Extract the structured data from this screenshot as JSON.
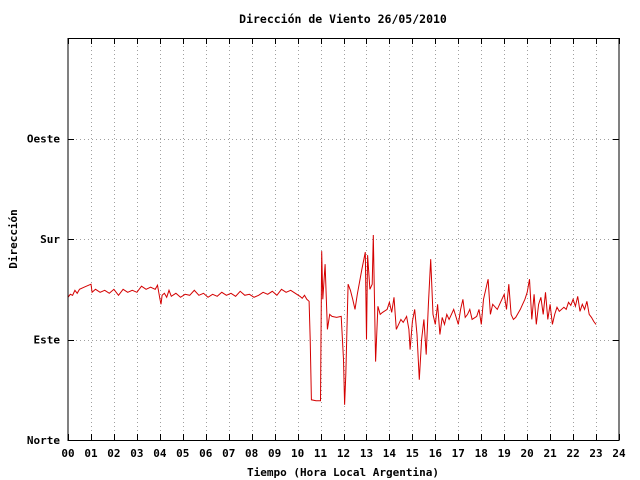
{
  "chart_data": {
    "type": "line",
    "title": "Dirección de Viento 26/05/2010",
    "xlabel": "Tiempo (Hora Local Argentina)",
    "ylabel": "Dirección",
    "xlim": [
      0,
      24
    ],
    "ylim": [
      0,
      4
    ],
    "x_ticks": [
      "00",
      "01",
      "02",
      "03",
      "04",
      "05",
      "06",
      "07",
      "08",
      "09",
      "10",
      "11",
      "12",
      "13",
      "14",
      "15",
      "16",
      "17",
      "18",
      "19",
      "20",
      "21",
      "22",
      "23",
      "24"
    ],
    "y_ticks": [
      {
        "value": 0,
        "label": "Norte"
      },
      {
        "value": 1,
        "label": "Este"
      },
      {
        "value": 2,
        "label": "Sur"
      },
      {
        "value": 3,
        "label": "Oeste"
      }
    ],
    "grid": true,
    "series": [
      {
        "color": "#d40000",
        "points": [
          [
            0.0,
            1.42
          ],
          [
            0.1,
            1.45
          ],
          [
            0.2,
            1.44
          ],
          [
            0.3,
            1.49
          ],
          [
            0.4,
            1.46
          ],
          [
            0.5,
            1.5
          ],
          [
            0.7,
            1.52
          ],
          [
            0.9,
            1.54
          ],
          [
            1.0,
            1.55
          ],
          [
            1.05,
            1.47
          ],
          [
            1.2,
            1.5
          ],
          [
            1.4,
            1.47
          ],
          [
            1.6,
            1.49
          ],
          [
            1.8,
            1.46
          ],
          [
            2.0,
            1.5
          ],
          [
            2.2,
            1.44
          ],
          [
            2.4,
            1.5
          ],
          [
            2.6,
            1.47
          ],
          [
            2.8,
            1.49
          ],
          [
            3.0,
            1.47
          ],
          [
            3.2,
            1.53
          ],
          [
            3.4,
            1.5
          ],
          [
            3.6,
            1.52
          ],
          [
            3.8,
            1.5
          ],
          [
            3.9,
            1.54
          ],
          [
            4.0,
            1.41
          ],
          [
            4.05,
            1.35
          ],
          [
            4.1,
            1.44
          ],
          [
            4.2,
            1.46
          ],
          [
            4.3,
            1.42
          ],
          [
            4.4,
            1.49
          ],
          [
            4.5,
            1.43
          ],
          [
            4.7,
            1.46
          ],
          [
            4.9,
            1.42
          ],
          [
            5.1,
            1.45
          ],
          [
            5.3,
            1.44
          ],
          [
            5.5,
            1.49
          ],
          [
            5.7,
            1.44
          ],
          [
            5.9,
            1.46
          ],
          [
            6.1,
            1.42
          ],
          [
            6.3,
            1.45
          ],
          [
            6.5,
            1.43
          ],
          [
            6.7,
            1.47
          ],
          [
            6.9,
            1.44
          ],
          [
            7.1,
            1.46
          ],
          [
            7.3,
            1.43
          ],
          [
            7.5,
            1.48
          ],
          [
            7.7,
            1.44
          ],
          [
            7.9,
            1.45
          ],
          [
            8.1,
            1.42
          ],
          [
            8.3,
            1.44
          ],
          [
            8.5,
            1.47
          ],
          [
            8.7,
            1.45
          ],
          [
            8.9,
            1.48
          ],
          [
            9.1,
            1.44
          ],
          [
            9.3,
            1.5
          ],
          [
            9.5,
            1.47
          ],
          [
            9.7,
            1.49
          ],
          [
            9.9,
            1.46
          ],
          [
            10.1,
            1.43
          ],
          [
            10.2,
            1.41
          ],
          [
            10.3,
            1.44
          ],
          [
            10.4,
            1.4
          ],
          [
            10.5,
            1.38
          ],
          [
            10.55,
            1.0
          ],
          [
            10.6,
            0.4
          ],
          [
            10.8,
            0.39
          ],
          [
            11.0,
            0.39
          ],
          [
            11.05,
            1.88
          ],
          [
            11.1,
            1.4
          ],
          [
            11.2,
            1.75
          ],
          [
            11.3,
            1.1
          ],
          [
            11.4,
            1.25
          ],
          [
            11.5,
            1.23
          ],
          [
            11.7,
            1.22
          ],
          [
            11.9,
            1.23
          ],
          [
            12.0,
            0.8
          ],
          [
            12.05,
            0.35
          ],
          [
            12.1,
            0.65
          ],
          [
            12.2,
            1.55
          ],
          [
            12.3,
            1.49
          ],
          [
            12.4,
            1.4
          ],
          [
            12.5,
            1.3
          ],
          [
            12.6,
            1.45
          ],
          [
            12.8,
            1.7
          ],
          [
            12.95,
            1.87
          ],
          [
            13.0,
            1.0
          ],
          [
            13.05,
            1.84
          ],
          [
            13.15,
            1.5
          ],
          [
            13.25,
            1.55
          ],
          [
            13.3,
            2.04
          ],
          [
            13.4,
            0.78
          ],
          [
            13.5,
            1.33
          ],
          [
            13.6,
            1.25
          ],
          [
            13.7,
            1.27
          ],
          [
            13.9,
            1.3
          ],
          [
            14.0,
            1.37
          ],
          [
            14.1,
            1.27
          ],
          [
            14.2,
            1.42
          ],
          [
            14.3,
            1.1
          ],
          [
            14.4,
            1.15
          ],
          [
            14.5,
            1.2
          ],
          [
            14.6,
            1.17
          ],
          [
            14.75,
            1.23
          ],
          [
            14.85,
            1.1
          ],
          [
            14.9,
            0.9
          ],
          [
            15.0,
            1.18
          ],
          [
            15.1,
            1.3
          ],
          [
            15.2,
            1.05
          ],
          [
            15.3,
            0.6
          ],
          [
            15.4,
            1.0
          ],
          [
            15.5,
            1.2
          ],
          [
            15.6,
            0.85
          ],
          [
            15.7,
            1.35
          ],
          [
            15.8,
            1.8
          ],
          [
            15.9,
            1.25
          ],
          [
            16.0,
            1.15
          ],
          [
            16.1,
            1.35
          ],
          [
            16.2,
            1.05
          ],
          [
            16.3,
            1.22
          ],
          [
            16.4,
            1.15
          ],
          [
            16.5,
            1.25
          ],
          [
            16.6,
            1.2
          ],
          [
            16.8,
            1.3
          ],
          [
            17.0,
            1.15
          ],
          [
            17.1,
            1.3
          ],
          [
            17.2,
            1.4
          ],
          [
            17.3,
            1.22
          ],
          [
            17.4,
            1.25
          ],
          [
            17.5,
            1.3
          ],
          [
            17.6,
            1.2
          ],
          [
            17.8,
            1.23
          ],
          [
            17.9,
            1.3
          ],
          [
            18.0,
            1.15
          ],
          [
            18.1,
            1.4
          ],
          [
            18.3,
            1.6
          ],
          [
            18.4,
            1.25
          ],
          [
            18.5,
            1.35
          ],
          [
            18.7,
            1.3
          ],
          [
            18.9,
            1.4
          ],
          [
            19.0,
            1.45
          ],
          [
            19.1,
            1.3
          ],
          [
            19.2,
            1.55
          ],
          [
            19.3,
            1.25
          ],
          [
            19.4,
            1.2
          ],
          [
            19.5,
            1.22
          ],
          [
            19.7,
            1.3
          ],
          [
            19.8,
            1.35
          ],
          [
            19.9,
            1.4
          ],
          [
            20.0,
            1.47
          ],
          [
            20.1,
            1.6
          ],
          [
            20.2,
            1.2
          ],
          [
            20.3,
            1.45
          ],
          [
            20.4,
            1.15
          ],
          [
            20.5,
            1.35
          ],
          [
            20.6,
            1.42
          ],
          [
            20.7,
            1.25
          ],
          [
            20.8,
            1.47
          ],
          [
            20.9,
            1.2
          ],
          [
            21.0,
            1.35
          ],
          [
            21.1,
            1.15
          ],
          [
            21.2,
            1.25
          ],
          [
            21.3,
            1.32
          ],
          [
            21.4,
            1.28
          ],
          [
            21.6,
            1.32
          ],
          [
            21.7,
            1.3
          ],
          [
            21.8,
            1.37
          ],
          [
            21.9,
            1.34
          ],
          [
            22.0,
            1.4
          ],
          [
            22.1,
            1.33
          ],
          [
            22.2,
            1.43
          ],
          [
            22.3,
            1.28
          ],
          [
            22.4,
            1.35
          ],
          [
            22.5,
            1.3
          ],
          [
            22.6,
            1.38
          ],
          [
            22.7,
            1.25
          ],
          [
            22.8,
            1.22
          ],
          [
            22.9,
            1.18
          ],
          [
            23.0,
            1.15
          ]
        ]
      }
    ]
  }
}
